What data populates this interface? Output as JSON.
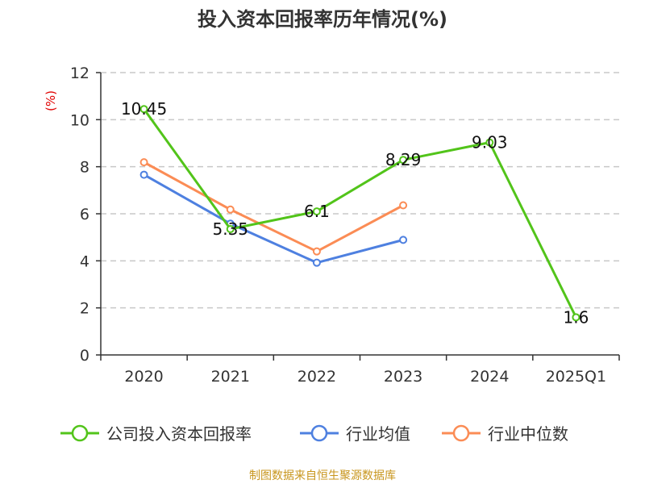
{
  "chart_data": {
    "type": "line",
    "title": "投入资本回报率历年情况(%)",
    "ylabel": "(%)",
    "xlabel": "",
    "categories": [
      "2020",
      "2021",
      "2022",
      "2023",
      "2024",
      "2025Q1"
    ],
    "ylim": [
      0,
      12
    ],
    "yticks": [
      0,
      2,
      4,
      6,
      8,
      10,
      12
    ],
    "grid": true,
    "legend_position": "bottom",
    "series": [
      {
        "name": "公司投入资本回报率",
        "color": "#52c41a",
        "values": [
          10.45,
          5.35,
          6.1,
          8.29,
          9.03,
          1.6
        ],
        "labels": [
          "10.45",
          "5.35",
          "6.1",
          "8.29",
          "9.03",
          "1.6"
        ]
      },
      {
        "name": "行业均值",
        "color": "#4e80e0",
        "values": [
          7.66,
          5.58,
          3.92,
          4.89,
          null,
          null
        ]
      },
      {
        "name": "行业中位数",
        "color": "#fb8c55",
        "values": [
          8.19,
          6.18,
          4.4,
          6.36,
          null,
          null
        ]
      }
    ]
  },
  "source": "制图数据来自恒生聚源数据库"
}
